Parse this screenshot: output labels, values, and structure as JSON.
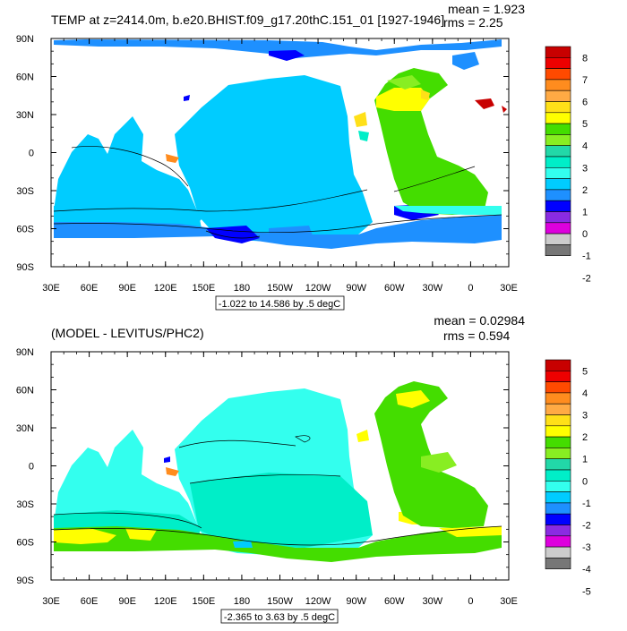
{
  "panel1": {
    "title": "TEMP at z=2414.0m, b.e20.BHIST.f09_g17.20thC.151_01 [1927-1946]",
    "mean_label": "mean = 1.923",
    "rms_label": "rms = 2.25",
    "range_label": "-1.022 to 14.586 by .5 degC",
    "colorbar_labels": [
      "8",
      "7",
      "6",
      "5",
      "4",
      "3",
      "2",
      "1",
      "0",
      "-1",
      "-2"
    ]
  },
  "panel2": {
    "title": "(MODEL - LEVITUS/PHC2)",
    "mean_label": "mean = 0.02984",
    "rms_label": "rms = 0.594",
    "range_label": "-2.365 to 3.63 by .5 degC",
    "colorbar_labels": [
      "5",
      "4",
      "3",
      "2",
      "1",
      "0",
      "-1",
      "-2",
      "-3",
      "-4",
      "-5"
    ]
  },
  "lat_labels": [
    "90N",
    "60N",
    "30N",
    "0",
    "30S",
    "60S",
    "90S"
  ],
  "lon_labels": [
    "30E",
    "60E",
    "90E",
    "120E",
    "150E",
    "180",
    "150W",
    "120W",
    "90W",
    "60W",
    "30W",
    "0",
    "30E"
  ],
  "colorbar_colors": [
    "#c80000",
    "#ee0000",
    "#ff4a00",
    "#ff8c1e",
    "#ffaa44",
    "#ffe018",
    "#ffff00",
    "#44dd00",
    "#88ee22",
    "#22d8a8",
    "#00eec8",
    "#33ffee",
    "#00ccff",
    "#1e90ff",
    "#0000ff",
    "#8a2be2",
    "#dd00dd",
    "#cccccc",
    "#777777"
  ]
}
